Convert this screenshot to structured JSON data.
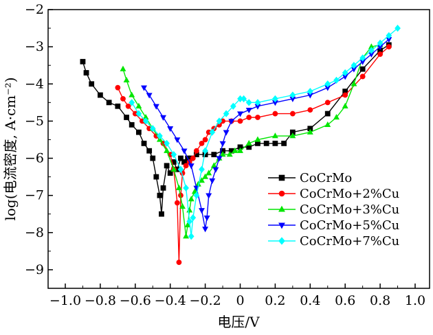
{
  "chart_data": {
    "type": "line",
    "title": "",
    "xlabel": "电压/V",
    "ylabel": "log(电流密度, A·cm⁻²)",
    "xlim": [
      -1.0,
      1.0
    ],
    "ylim": [
      -9.5,
      -2
    ],
    "x_ticks": [
      -1.0,
      -0.8,
      -0.6,
      -0.4,
      -0.2,
      0,
      0.2,
      0.4,
      0.6,
      0.8,
      1.0
    ],
    "x_tick_labels": [
      "−1.0",
      "−0.8",
      "−0.6",
      "−0.4",
      "−0.2",
      "0",
      "0.2",
      "0.4",
      "0.6",
      "0.8",
      "1.0"
    ],
    "y_ticks": [
      -9,
      -8,
      -7,
      -6,
      -5,
      -4,
      -3,
      -2
    ],
    "y_tick_labels": [
      "−9",
      "−8",
      "−7",
      "−6",
      "−5",
      "−4",
      "−3",
      "−2"
    ],
    "grid": false,
    "legend_position": "lower-right",
    "series": [
      {
        "name": "CoCrMo",
        "color": "#000000",
        "marker": "square",
        "x": [
          -0.9,
          -0.88,
          -0.85,
          -0.8,
          -0.75,
          -0.7,
          -0.65,
          -0.62,
          -0.58,
          -0.55,
          -0.52,
          -0.5,
          -0.48,
          -0.46,
          -0.45,
          -0.44,
          -0.42,
          -0.4,
          -0.38,
          -0.36,
          -0.34,
          -0.32,
          -0.3,
          -0.28,
          -0.25,
          -0.2,
          -0.15,
          -0.1,
          -0.05,
          0.0,
          0.05,
          0.1,
          0.15,
          0.2,
          0.25,
          0.3,
          0.4,
          0.5,
          0.6,
          0.7,
          0.8,
          0.85
        ],
        "y": [
          -3.4,
          -3.7,
          -4.0,
          -4.3,
          -4.5,
          -4.6,
          -4.9,
          -5.1,
          -5.3,
          -5.6,
          -5.8,
          -6.0,
          -6.5,
          -7.0,
          -7.5,
          -6.8,
          -6.2,
          -6.4,
          -6.1,
          -6.3,
          -6.0,
          -6.1,
          -6.0,
          -6.0,
          -5.9,
          -5.9,
          -5.9,
          -5.8,
          -5.8,
          -5.7,
          -5.7,
          -5.6,
          -5.6,
          -5.6,
          -5.6,
          -5.3,
          -5.2,
          -4.8,
          -4.2,
          -3.6,
          -3.1,
          -2.95
        ]
      },
      {
        "name": "CoCrMo+2%Cu",
        "color": "#ff0000",
        "marker": "circle",
        "x": [
          -0.7,
          -0.67,
          -0.64,
          -0.6,
          -0.56,
          -0.52,
          -0.48,
          -0.44,
          -0.4,
          -0.38,
          -0.36,
          -0.35,
          -0.34,
          -0.33,
          -0.31,
          -0.29,
          -0.27,
          -0.25,
          -0.22,
          -0.2,
          -0.18,
          -0.15,
          -0.12,
          -0.1,
          -0.05,
          0.0,
          0.05,
          0.1,
          0.2,
          0.3,
          0.4,
          0.5,
          0.6,
          0.7,
          0.8,
          0.85
        ],
        "y": [
          -4.1,
          -4.4,
          -4.6,
          -4.8,
          -5.0,
          -5.2,
          -5.4,
          -5.6,
          -5.9,
          -6.3,
          -7.2,
          -8.8,
          -7.0,
          -6.4,
          -6.2,
          -6.1,
          -6.0,
          -5.8,
          -5.6,
          -5.5,
          -5.3,
          -5.2,
          -5.1,
          -5.0,
          -5.0,
          -5.0,
          -4.9,
          -4.9,
          -4.8,
          -4.8,
          -4.7,
          -4.5,
          -4.3,
          -3.8,
          -3.2,
          -3.0
        ]
      },
      {
        "name": "CoCrMo+3%Cu",
        "color": "#00e600",
        "marker": "triangle-up",
        "x": [
          -0.67,
          -0.65,
          -0.62,
          -0.58,
          -0.54,
          -0.5,
          -0.46,
          -0.42,
          -0.38,
          -0.35,
          -0.33,
          -0.31,
          -0.3,
          -0.29,
          -0.28,
          -0.26,
          -0.24,
          -0.22,
          -0.2,
          -0.18,
          -0.15,
          -0.12,
          -0.1,
          -0.06,
          -0.03,
          0.0,
          0.05,
          0.1,
          0.2,
          0.3,
          0.4,
          0.5,
          0.55,
          0.6,
          0.65,
          0.7,
          0.75,
          0.8
        ],
        "y": [
          -3.6,
          -3.9,
          -4.3,
          -4.6,
          -4.9,
          -5.2,
          -5.5,
          -5.8,
          -6.3,
          -6.8,
          -7.3,
          -8.1,
          -7.8,
          -7.4,
          -7.1,
          -6.9,
          -6.7,
          -6.6,
          -6.5,
          -6.4,
          -6.2,
          -6.0,
          -5.9,
          -5.9,
          -5.8,
          -5.8,
          -5.6,
          -5.5,
          -5.4,
          -5.4,
          -5.3,
          -5.1,
          -4.9,
          -4.6,
          -4.0,
          -3.3,
          -3.0,
          -2.95
        ]
      },
      {
        "name": "CoCrMo+5%Cu",
        "color": "#0000ff",
        "marker": "triangle-down",
        "x": [
          -0.55,
          -0.52,
          -0.48,
          -0.44,
          -0.4,
          -0.36,
          -0.32,
          -0.28,
          -0.25,
          -0.22,
          -0.2,
          -0.19,
          -0.18,
          -0.16,
          -0.14,
          -0.12,
          -0.1,
          -0.08,
          -0.05,
          0.0,
          0.05,
          0.1,
          0.2,
          0.3,
          0.4,
          0.5,
          0.6,
          0.65,
          0.7,
          0.75,
          0.8,
          0.85
        ],
        "y": [
          -4.1,
          -4.3,
          -4.6,
          -4.9,
          -5.2,
          -5.5,
          -5.8,
          -6.2,
          -6.8,
          -7.4,
          -7.9,
          -7.6,
          -7.0,
          -6.6,
          -6.3,
          -6.0,
          -5.6,
          -5.3,
          -5.0,
          -4.8,
          -4.7,
          -4.6,
          -4.5,
          -4.4,
          -4.3,
          -4.1,
          -3.8,
          -3.6,
          -3.4,
          -3.2,
          -3.0,
          -2.8
        ]
      },
      {
        "name": "CoCrMo+7%Cu",
        "color": "#00ffff",
        "marker": "diamond",
        "x": [
          -0.62,
          -0.58,
          -0.54,
          -0.5,
          -0.46,
          -0.42,
          -0.38,
          -0.34,
          -0.31,
          -0.29,
          -0.28,
          -0.27,
          -0.25,
          -0.22,
          -0.2,
          -0.16,
          -0.12,
          -0.08,
          -0.04,
          0.0,
          0.02,
          0.05,
          0.1,
          0.2,
          0.3,
          0.4,
          0.5,
          0.55,
          0.6,
          0.65,
          0.7,
          0.75,
          0.8,
          0.85,
          0.9
        ],
        "y": [
          -4.5,
          -4.8,
          -5.0,
          -5.2,
          -5.4,
          -5.6,
          -5.9,
          -6.3,
          -6.8,
          -7.7,
          -8.1,
          -7.6,
          -7.0,
          -6.3,
          -5.8,
          -5.3,
          -5.0,
          -4.8,
          -4.6,
          -4.4,
          -4.4,
          -4.5,
          -4.5,
          -4.4,
          -4.3,
          -4.2,
          -4.0,
          -3.9,
          -3.7,
          -3.5,
          -3.3,
          -3.1,
          -2.9,
          -2.7,
          -2.5
        ]
      }
    ]
  }
}
